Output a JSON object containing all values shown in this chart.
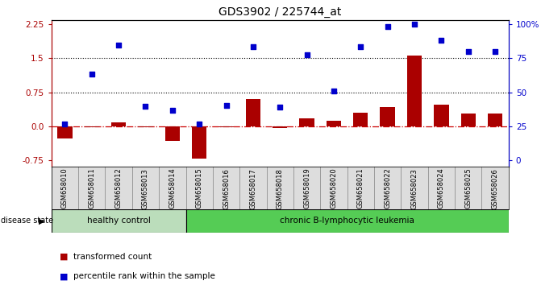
{
  "title": "GDS3902 / 225744_at",
  "samples": [
    "GSM658010",
    "GSM658011",
    "GSM658012",
    "GSM658013",
    "GSM658014",
    "GSM658015",
    "GSM658016",
    "GSM658017",
    "GSM658018",
    "GSM658019",
    "GSM658020",
    "GSM658021",
    "GSM658022",
    "GSM658023",
    "GSM658024",
    "GSM658025",
    "GSM658026"
  ],
  "bar_values": [
    -0.28,
    -0.02,
    0.08,
    -0.02,
    -0.32,
    -0.72,
    -0.02,
    0.6,
    -0.04,
    0.18,
    0.12,
    0.3,
    0.42,
    1.57,
    0.48,
    0.28,
    0.27
  ],
  "dot_values": [
    0.05,
    1.15,
    1.8,
    0.43,
    0.35,
    0.05,
    0.45,
    1.75,
    0.42,
    1.58,
    0.78,
    1.75,
    2.2,
    2.25,
    1.9,
    1.65,
    1.65
  ],
  "healthy_count": 5,
  "bar_color": "#aa0000",
  "dot_color": "#0000cc",
  "zero_line_color": "#cc0000",
  "dotted_line_color": "#000000",
  "healthy_label": "healthy control",
  "leukemia_label": "chronic B-lymphocytic leukemia",
  "disease_state_label": "disease state",
  "legend_bar": "transformed count",
  "legend_dot": "percentile rank within the sample",
  "ylim_left": [
    -0.9,
    2.35
  ],
  "yticks_left": [
    -0.75,
    0.0,
    0.75,
    1.5,
    2.25
  ],
  "yticks_right": [
    0,
    25,
    50,
    75,
    100
  ],
  "ytick_labels_right": [
    "0",
    "25",
    "50",
    "75",
    "100%"
  ],
  "hlines": [
    0.75,
    1.5
  ],
  "bg_color": "#ffffff",
  "healthy_bg": "#bbddbb",
  "leukemia_bg": "#55cc55",
  "label_bg": "#dddddd"
}
